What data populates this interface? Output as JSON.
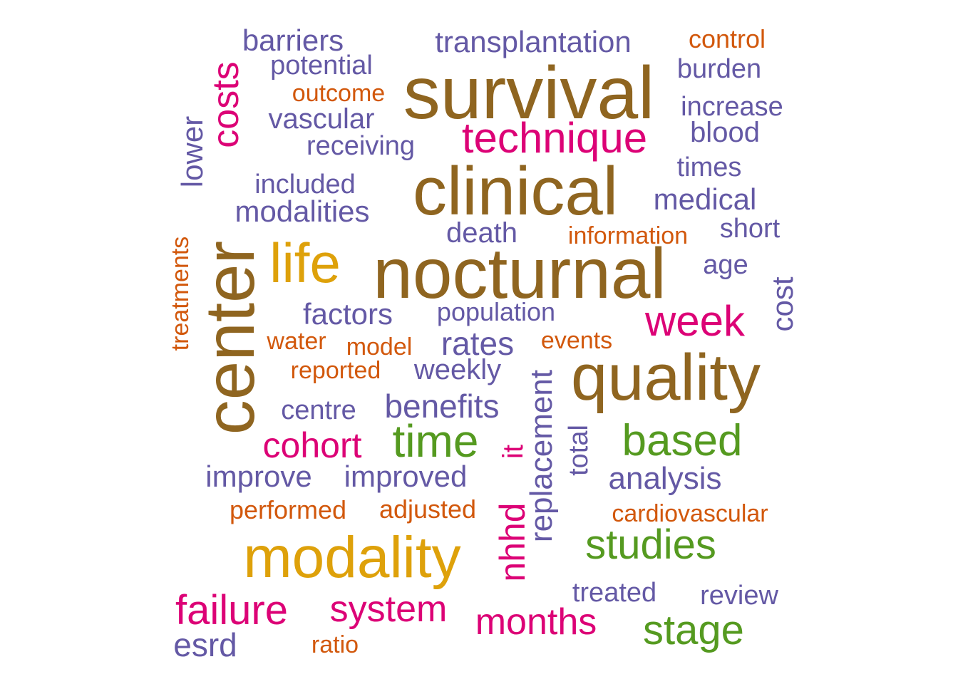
{
  "colors": {
    "brown": "#8f6520",
    "gold": "#dea10a",
    "green": "#559a20",
    "magenta": "#dc0276",
    "purple": "#6459a5",
    "orange": "#d2580c"
  },
  "words": [
    {
      "text": "survival",
      "color": "purple_brown",
      "rotated": false
    },
    {
      "text": "clinical",
      "color": "brown",
      "rotated": false
    },
    {
      "text": "nocturnal",
      "color": "brown",
      "rotated": false
    },
    {
      "text": "quality",
      "color": "brown",
      "rotated": false
    },
    {
      "text": "center",
      "color": "brown",
      "rotated": true
    },
    {
      "text": "modality",
      "color": "gold",
      "rotated": false
    },
    {
      "text": "life",
      "color": "gold",
      "rotated": false
    },
    {
      "text": "technique",
      "color": "magenta",
      "rotated": false
    },
    {
      "text": "week",
      "color": "magenta",
      "rotated": false
    },
    {
      "text": "costs",
      "color": "magenta",
      "rotated": true
    },
    {
      "text": "cohort",
      "color": "magenta",
      "rotated": false
    },
    {
      "text": "failure",
      "color": "magenta",
      "rotated": false
    },
    {
      "text": "system",
      "color": "magenta",
      "rotated": false
    },
    {
      "text": "months",
      "color": "magenta",
      "rotated": false
    },
    {
      "text": "nhhd",
      "color": "magenta",
      "rotated": true
    },
    {
      "text": "it",
      "color": "magenta",
      "rotated": true
    },
    {
      "text": "time",
      "color": "green",
      "rotated": false
    },
    {
      "text": "based",
      "color": "green",
      "rotated": false
    },
    {
      "text": "studies",
      "color": "green",
      "rotated": false
    },
    {
      "text": "stage",
      "color": "green",
      "rotated": false
    },
    {
      "text": "barriers",
      "color": "purple",
      "rotated": false
    },
    {
      "text": "transplantation",
      "color": "purple",
      "rotated": false
    },
    {
      "text": "potential",
      "color": "purple",
      "rotated": false
    },
    {
      "text": "burden",
      "color": "purple",
      "rotated": false
    },
    {
      "text": "vascular",
      "color": "purple",
      "rotated": false
    },
    {
      "text": "increase",
      "color": "purple",
      "rotated": false
    },
    {
      "text": "blood",
      "color": "purple",
      "rotated": false
    },
    {
      "text": "receiving",
      "color": "purple",
      "rotated": false
    },
    {
      "text": "lower",
      "color": "purple",
      "rotated": true
    },
    {
      "text": "times",
      "color": "purple",
      "rotated": false
    },
    {
      "text": "included",
      "color": "purple",
      "rotated": false
    },
    {
      "text": "medical",
      "color": "purple",
      "rotated": false
    },
    {
      "text": "modalities",
      "color": "purple",
      "rotated": false
    },
    {
      "text": "short",
      "color": "purple",
      "rotated": false
    },
    {
      "text": "death",
      "color": "purple",
      "rotated": false
    },
    {
      "text": "age",
      "color": "purple",
      "rotated": false
    },
    {
      "text": "cost",
      "color": "purple",
      "rotated": true
    },
    {
      "text": "factors",
      "color": "purple",
      "rotated": false
    },
    {
      "text": "population",
      "color": "purple",
      "rotated": false
    },
    {
      "text": "rates",
      "color": "purple",
      "rotated": false
    },
    {
      "text": "weekly",
      "color": "purple",
      "rotated": false
    },
    {
      "text": "centre",
      "color": "purple",
      "rotated": false
    },
    {
      "text": "benefits",
      "color": "purple",
      "rotated": false
    },
    {
      "text": "replacement",
      "color": "purple",
      "rotated": true
    },
    {
      "text": "total",
      "color": "purple",
      "rotated": true
    },
    {
      "text": "improve",
      "color": "purple",
      "rotated": false
    },
    {
      "text": "improved",
      "color": "purple",
      "rotated": false
    },
    {
      "text": "analysis",
      "color": "purple",
      "rotated": false
    },
    {
      "text": "treated",
      "color": "purple",
      "rotated": false
    },
    {
      "text": "review",
      "color": "purple",
      "rotated": false
    },
    {
      "text": "esrd",
      "color": "purple",
      "rotated": false
    },
    {
      "text": "control",
      "color": "orange",
      "rotated": false
    },
    {
      "text": "outcome",
      "color": "orange",
      "rotated": false
    },
    {
      "text": "information",
      "color": "orange",
      "rotated": false
    },
    {
      "text": "treatments",
      "color": "orange",
      "rotated": true
    },
    {
      "text": "water",
      "color": "orange",
      "rotated": false
    },
    {
      "text": "model",
      "color": "orange",
      "rotated": false
    },
    {
      "text": "events",
      "color": "orange",
      "rotated": false
    },
    {
      "text": "reported",
      "color": "orange",
      "rotated": false
    },
    {
      "text": "performed",
      "color": "orange",
      "rotated": false
    },
    {
      "text": "adjusted",
      "color": "orange",
      "rotated": false
    },
    {
      "text": "cardiovascular",
      "color": "orange",
      "rotated": false
    },
    {
      "text": "ratio",
      "color": "orange",
      "rotated": false
    }
  ]
}
